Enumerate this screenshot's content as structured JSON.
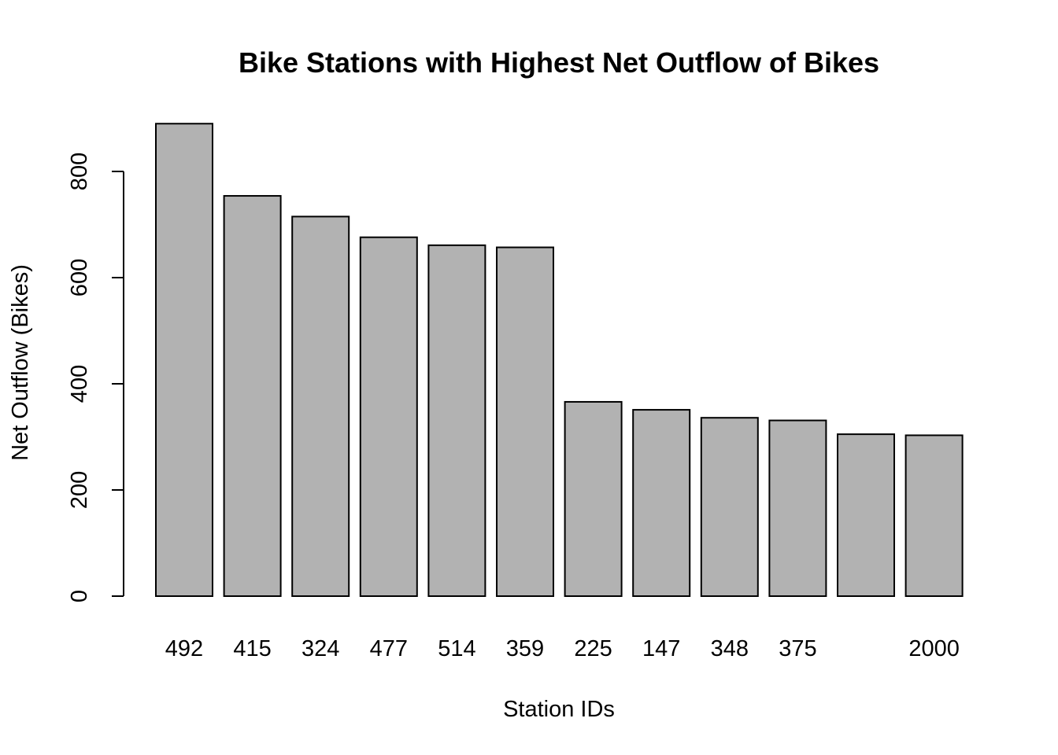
{
  "chart_data": {
    "type": "bar",
    "title": "Bike Stations with Highest Net Outflow of Bikes",
    "xlabel": "Station IDs",
    "ylabel": "Net Outflow (Bikes)",
    "categories": [
      "492",
      "415",
      "324",
      "477",
      "514",
      "359",
      "225",
      "147",
      "348",
      "375",
      "",
      "2000"
    ],
    "values": [
      890,
      754,
      715,
      676,
      661,
      657,
      366,
      351,
      336,
      331,
      305,
      303
    ],
    "yticks": [
      0,
      200,
      400,
      600,
      800
    ],
    "ylim": [
      0,
      800
    ],
    "grid": false,
    "colors": {
      "bar_fill": "#b2b2b2",
      "bar_stroke": "#000000"
    }
  }
}
